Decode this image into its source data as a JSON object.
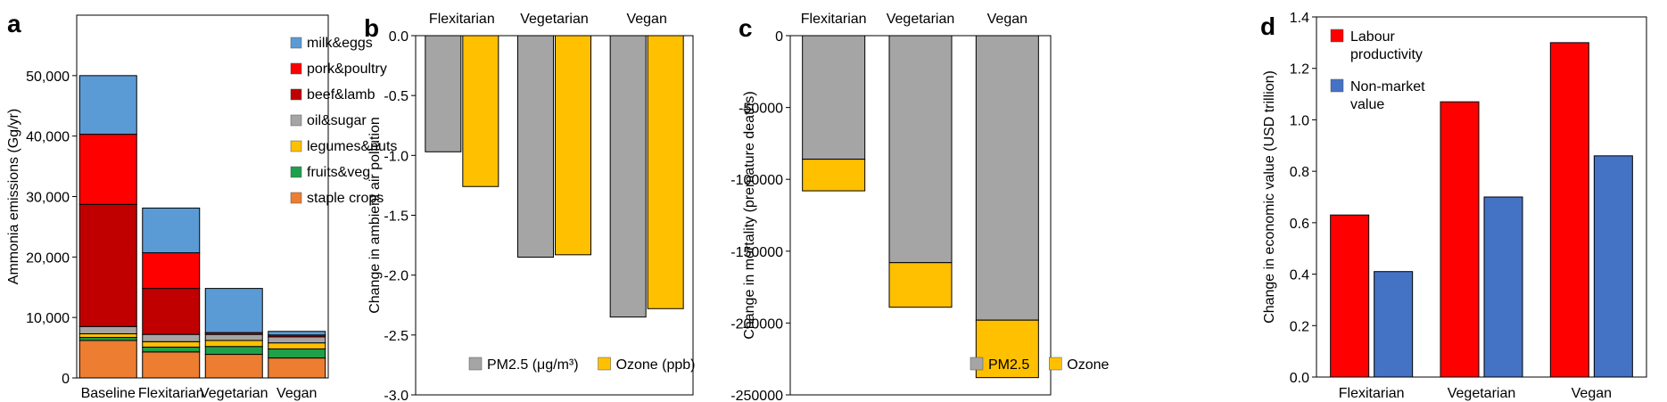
{
  "chart_data": [
    {
      "panel": "a",
      "type": "bar",
      "stacked": true,
      "categories": [
        "Baseline",
        "Flexitarian",
        "Vegetarian",
        "Vegan"
      ],
      "ylabel": "Ammonia emissions (Gg/yr)",
      "ylim": [
        0,
        60000
      ],
      "yticks": [
        "0",
        "10,000",
        "20,000",
        "30,000",
        "40,000",
        "50,000"
      ],
      "legend_position": "top-right",
      "series": [
        {
          "name": "staple crops",
          "color": "#ED7D31",
          "values": [
            6200,
            4300,
            3900,
            3300
          ]
        },
        {
          "name": "fruits&veg",
          "color": "#1FA04A",
          "values": [
            500,
            800,
            1300,
            1500
          ]
        },
        {
          "name": "legumes&nuts",
          "color": "#FFC000",
          "values": [
            600,
            900,
            1000,
            1000
          ]
        },
        {
          "name": "oil&sugar",
          "color": "#A5A5A5",
          "values": [
            1200,
            1200,
            1000,
            1000
          ]
        },
        {
          "name": "beef&lamb",
          "color": "#C00000",
          "values": [
            20200,
            7600,
            300,
            300
          ]
        },
        {
          "name": "pork&poultry",
          "color": "#FF0000",
          "values": [
            11600,
            5900,
            0,
            0
          ]
        },
        {
          "name": "milk&eggs",
          "color": "#5B9BD5",
          "values": [
            9700,
            7400,
            7300,
            600
          ]
        }
      ],
      "legend_order": [
        "milk&eggs",
        "pork&poultry",
        "beef&lamb",
        "oil&sugar",
        "legumes&nuts",
        "fruits&veg",
        "staple crops"
      ]
    },
    {
      "panel": "b",
      "type": "bar",
      "categories": [
        "Flexitarian",
        "Vegetarian",
        "Vegan"
      ],
      "category_labels_position": "top",
      "ylabel": "Change in ambient air pollution",
      "ylim": [
        -3.0,
        0
      ],
      "yticks": [
        "0.0",
        "-0.5",
        "-1.0",
        "-1.5",
        "-2.0",
        "-2.5",
        "-3.0"
      ],
      "legend_position": "bottom",
      "series": [
        {
          "name": "PM2.5 (μg/m³)",
          "color": "#A5A5A5",
          "values": [
            -0.97,
            -1.85,
            -2.35
          ]
        },
        {
          "name": "Ozone (ppb)",
          "color": "#FFC000",
          "values": [
            -1.26,
            -1.83,
            -2.28
          ]
        }
      ]
    },
    {
      "panel": "c",
      "type": "bar",
      "stacked": true,
      "categories": [
        "Flexitarian",
        "Vegetarian",
        "Vegan"
      ],
      "category_labels_position": "top",
      "ylabel": "Change in mortality (premature deaths)",
      "ylim": [
        -250000,
        0
      ],
      "yticks": [
        "0",
        "-50000",
        "-100000",
        "-150000",
        "-200000",
        "-250000"
      ],
      "legend_position": "bottom-left",
      "series": [
        {
          "name": "PM2.5",
          "color": "#A5A5A5",
          "values": [
            -86000,
            -158000,
            -198000
          ]
        },
        {
          "name": "Ozone",
          "color": "#FFC000",
          "values": [
            -22000,
            -31000,
            -40000
          ]
        }
      ]
    },
    {
      "panel": "d",
      "type": "bar",
      "categories": [
        "Flexitarian",
        "Vegetarian",
        "Vegan"
      ],
      "ylabel": "Change in economic value (USD trillion)",
      "ylim": [
        0,
        1.4
      ],
      "yticks": [
        "0.0",
        "0.2",
        "0.4",
        "0.6",
        "0.8",
        "1.0",
        "1.2",
        "1.4"
      ],
      "legend_position": "top-left",
      "series": [
        {
          "name": "Labour productivity",
          "label_lines": [
            "Labour",
            "productivity"
          ],
          "color": "#FF0000",
          "values": [
            0.63,
            1.07,
            1.3
          ]
        },
        {
          "name": "Non-market value",
          "label_lines": [
            "Non-market",
            "value"
          ],
          "color": "#4472C4",
          "values": [
            0.41,
            0.7,
            0.86
          ]
        }
      ]
    }
  ]
}
